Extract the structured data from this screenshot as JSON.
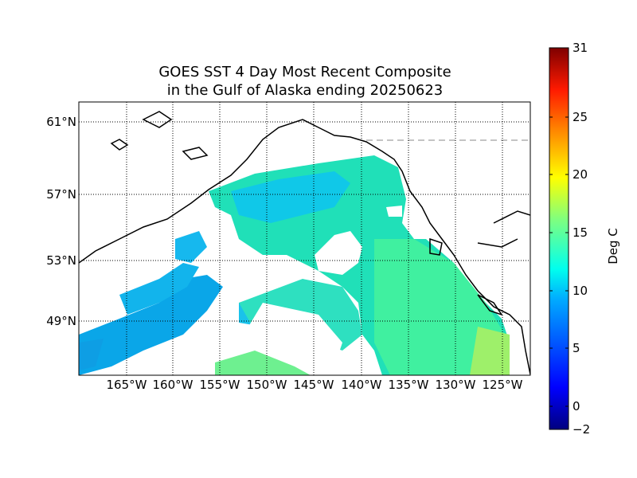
{
  "title": {
    "line1": "GOES SST 4 Day Most Recent Composite",
    "line2": "in the Gulf of Alaska ending 20250623"
  },
  "map": {
    "lon_ticks": [
      "165°W",
      "160°W",
      "155°W",
      "150°W",
      "145°W",
      "140°W",
      "135°W",
      "130°W",
      "125°W"
    ],
    "lat_ticks": [
      "61°N",
      "57°N",
      "53°N",
      "49°N"
    ]
  },
  "colorbar": {
    "label": "Deg C",
    "ticks": [
      "31",
      "25",
      "20",
      "15",
      "10",
      "5",
      "0",
      "−2"
    ],
    "colors": [
      "#00007f",
      "#0000ff",
      "#007fff",
      "#00ffff",
      "#7fff7f",
      "#ffff00",
      "#ff7f00",
      "#ff0000",
      "#7f0000"
    ]
  }
}
